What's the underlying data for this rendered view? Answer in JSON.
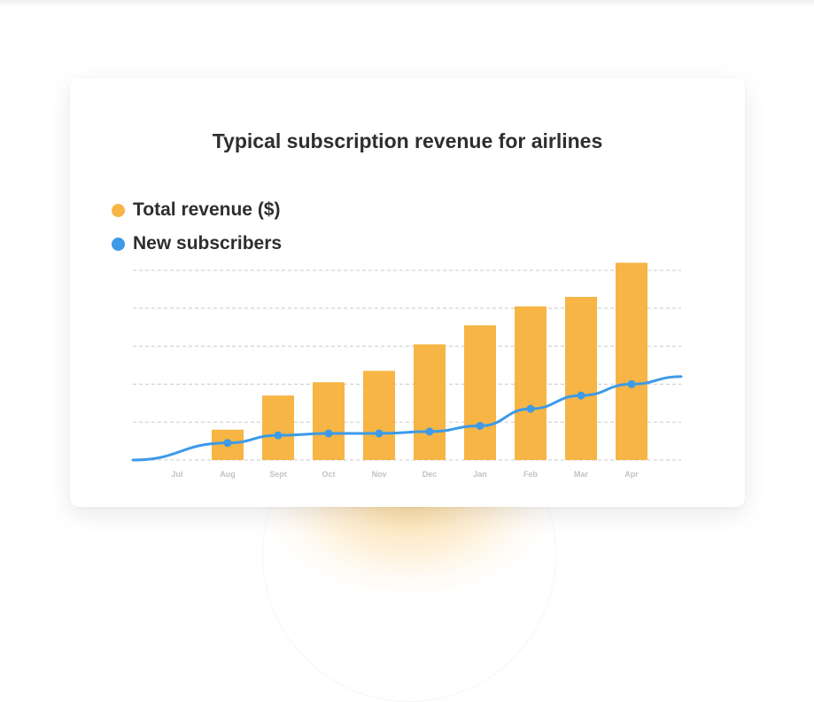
{
  "colors": {
    "revenue": "#f6b544",
    "subscribers": "#3d9ae8",
    "grid": "#c9c9c9",
    "tick": "#c3c3c3"
  },
  "chart_data": {
    "type": "bar",
    "title": "Typical subscription revenue for airlines",
    "categories": [
      "Jul",
      "Aug",
      "Sept",
      "Oct",
      "Nov",
      "Dec",
      "Jan",
      "Feb",
      "Mar",
      "Apr"
    ],
    "series": [
      {
        "name": "Total revenue ($)",
        "type": "bar",
        "values": [
          0,
          0.8,
          1.7,
          2.05,
          2.35,
          3.05,
          3.55,
          4.05,
          4.3,
          5.2
        ]
      },
      {
        "name": "New subscribers",
        "type": "line",
        "values": [
          null,
          0.45,
          0.65,
          0.7,
          0.7,
          0.75,
          0.9,
          1.35,
          1.7,
          2.0
        ],
        "start_value": 0,
        "end_value": 2.2
      }
    ],
    "ylim": [
      0,
      5
    ],
    "yticks_shown": false,
    "grid": "horizontal dashed",
    "legend_position": "top-left"
  }
}
